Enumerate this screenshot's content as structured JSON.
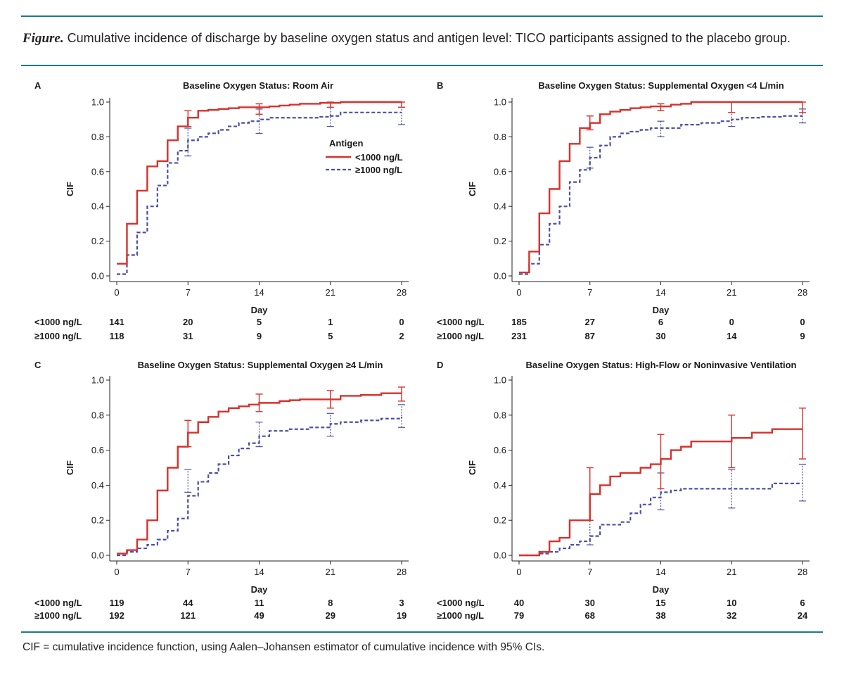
{
  "caption": {
    "label": "Figure.",
    "text": "Cumulative incidence of discharge by baseline oxygen status and antigen level: TICO participants assigned to the placebo group."
  },
  "footnote": "CIF = cumulative incidence function, using Aalen–Johansen estimator of cumulative incidence with 95% CIs.",
  "colors": {
    "low": "#d9302b",
    "high": "#4b4fa6",
    "rule": "#1e7a87"
  },
  "chart_data": [
    {
      "type": "line",
      "panel": "A",
      "title": "Baseline Oxygen Status: Room Air",
      "xlabel": "Day",
      "ylabel": "CIF",
      "xlim": [
        0,
        28
      ],
      "ylim": [
        0,
        1
      ],
      "xticks": [
        "0",
        "7",
        "14",
        "21",
        "28"
      ],
      "yticks": [
        "0.0",
        "0.2",
        "0.4",
        "0.6",
        "0.8",
        "1.0"
      ],
      "legend": {
        "title": "Antigen",
        "position": "center-right"
      },
      "series": [
        {
          "name": "<1000 ng/L",
          "style": "solid",
          "x": [
            0,
            1,
            2,
            3,
            4,
            5,
            6,
            7,
            8,
            9,
            10,
            11,
            12,
            14,
            15,
            16,
            17,
            18,
            19,
            20,
            21,
            22,
            26,
            28
          ],
          "y": [
            0.07,
            0.3,
            0.49,
            0.63,
            0.66,
            0.78,
            0.86,
            0.91,
            0.95,
            0.955,
            0.96,
            0.965,
            0.97,
            0.97,
            0.975,
            0.98,
            0.985,
            0.99,
            0.99,
            0.995,
            0.995,
            1.0,
            1.0,
            1.0
          ],
          "ci": [
            {
              "x": 7,
              "lo": 0.86,
              "hi": 0.95
            },
            {
              "x": 14,
              "lo": 0.93,
              "hi": 0.99
            },
            {
              "x": 21,
              "lo": 0.97,
              "hi": 1.0
            },
            {
              "x": 28,
              "lo": 0.97,
              "hi": 1.0
            }
          ]
        },
        {
          "name": "≥1000 ng/L",
          "style": "dashed",
          "x": [
            0,
            1,
            2,
            3,
            4,
            5,
            6,
            7,
            8,
            9,
            10,
            11,
            12,
            13,
            14,
            15,
            17,
            19,
            20,
            21,
            22,
            24,
            26,
            28
          ],
          "y": [
            0.01,
            0.12,
            0.25,
            0.4,
            0.52,
            0.65,
            0.72,
            0.78,
            0.8,
            0.82,
            0.84,
            0.86,
            0.88,
            0.89,
            0.9,
            0.91,
            0.91,
            0.91,
            0.915,
            0.92,
            0.94,
            0.94,
            0.94,
            0.94
          ],
          "ci": [
            {
              "x": 7,
              "lo": 0.69,
              "hi": 0.85
            },
            {
              "x": 14,
              "lo": 0.82,
              "hi": 0.96
            },
            {
              "x": 21,
              "lo": 0.86,
              "hi": 0.97
            },
            {
              "x": 28,
              "lo": 0.87,
              "hi": 0.97
            }
          ]
        }
      ],
      "at_risk": {
        "days": [
          0,
          7,
          14,
          21,
          28
        ],
        "rows": [
          {
            "label": "<1000 ng/L",
            "values": [
              "141",
              "20",
              "5",
              "1",
              "0"
            ]
          },
          {
            "label": "≥1000 ng/L",
            "values": [
              "118",
              "31",
              "9",
              "5",
              "2"
            ]
          }
        ]
      }
    },
    {
      "type": "line",
      "panel": "B",
      "title": "Baseline Oxygen Status: Supplemental Oxygen <4 L/min",
      "xlabel": "Day",
      "ylabel": "CIF",
      "xlim": [
        0,
        28
      ],
      "ylim": [
        0,
        1
      ],
      "xticks": [
        "0",
        "7",
        "14",
        "21",
        "28"
      ],
      "yticks": [
        "0.0",
        "0.2",
        "0.4",
        "0.6",
        "0.8",
        "1.0"
      ],
      "series": [
        {
          "name": "<1000 ng/L",
          "style": "solid",
          "x": [
            0,
            1,
            2,
            3,
            4,
            5,
            6,
            7,
            8,
            9,
            10,
            11,
            12,
            13,
            14,
            15,
            16,
            17,
            20,
            24,
            28
          ],
          "y": [
            0.02,
            0.14,
            0.36,
            0.5,
            0.66,
            0.76,
            0.85,
            0.88,
            0.93,
            0.945,
            0.955,
            0.965,
            0.97,
            0.975,
            0.975,
            0.985,
            0.99,
            1.0,
            1.0,
            1.0,
            1.0
          ],
          "ci": [
            {
              "x": 7,
              "lo": 0.84,
              "hi": 0.92
            },
            {
              "x": 14,
              "lo": 0.95,
              "hi": 0.99
            },
            {
              "x": 21,
              "lo": 0.94,
              "hi": 1.0
            },
            {
              "x": 28,
              "lo": 0.94,
              "hi": 1.0
            }
          ]
        },
        {
          "name": "≥1000 ng/L",
          "style": "dashed",
          "x": [
            0,
            1,
            2,
            3,
            4,
            5,
            6,
            7,
            8,
            9,
            10,
            11,
            12,
            13,
            14,
            16,
            18,
            20,
            21,
            22,
            24,
            26,
            28
          ],
          "y": [
            0.01,
            0.07,
            0.18,
            0.3,
            0.4,
            0.54,
            0.61,
            0.68,
            0.75,
            0.8,
            0.82,
            0.83,
            0.84,
            0.85,
            0.85,
            0.87,
            0.88,
            0.89,
            0.9,
            0.91,
            0.915,
            0.92,
            0.92
          ],
          "ci": [
            {
              "x": 7,
              "lo": 0.62,
              "hi": 0.74
            },
            {
              "x": 14,
              "lo": 0.8,
              "hi": 0.89
            },
            {
              "x": 21,
              "lo": 0.86,
              "hi": 0.94
            },
            {
              "x": 28,
              "lo": 0.88,
              "hi": 0.96
            }
          ]
        }
      ],
      "at_risk": {
        "days": [
          0,
          7,
          14,
          21,
          28
        ],
        "rows": [
          {
            "label": "<1000 ng/L",
            "values": [
              "185",
              "27",
              "6",
              "0",
              "0"
            ]
          },
          {
            "label": "≥1000 ng/L",
            "values": [
              "231",
              "87",
              "30",
              "14",
              "9"
            ]
          }
        ]
      }
    },
    {
      "type": "line",
      "panel": "C",
      "title": "Baseline Oxygen Status: Supplemental Oxygen ≥4 L/min",
      "xlabel": "Day",
      "ylabel": "CIF",
      "xlim": [
        0,
        28
      ],
      "ylim": [
        0,
        1
      ],
      "xticks": [
        "0",
        "7",
        "14",
        "21",
        "28"
      ],
      "yticks": [
        "0.0",
        "0.2",
        "0.4",
        "0.6",
        "0.8",
        "1.0"
      ],
      "series": [
        {
          "name": "<1000 ng/L",
          "style": "solid",
          "x": [
            0,
            1,
            2,
            3,
            4,
            5,
            6,
            7,
            8,
            9,
            10,
            11,
            12,
            13,
            14,
            16,
            17,
            18,
            21,
            22,
            24,
            26,
            28
          ],
          "y": [
            0.01,
            0.03,
            0.09,
            0.2,
            0.37,
            0.5,
            0.62,
            0.7,
            0.76,
            0.79,
            0.82,
            0.84,
            0.85,
            0.86,
            0.87,
            0.88,
            0.885,
            0.89,
            0.89,
            0.91,
            0.915,
            0.925,
            0.925
          ],
          "ci": [
            {
              "x": 7,
              "lo": 0.62,
              "hi": 0.77
            },
            {
              "x": 14,
              "lo": 0.82,
              "hi": 0.92
            },
            {
              "x": 21,
              "lo": 0.84,
              "hi": 0.94
            },
            {
              "x": 28,
              "lo": 0.88,
              "hi": 0.96
            }
          ]
        },
        {
          "name": "≥1000 ng/L",
          "style": "dashed",
          "x": [
            0,
            1,
            2,
            3,
            4,
            5,
            6,
            7,
            8,
            9,
            10,
            11,
            12,
            13,
            14,
            15,
            17,
            19,
            21,
            22,
            24,
            26,
            28
          ],
          "y": [
            0.0,
            0.02,
            0.04,
            0.06,
            0.09,
            0.14,
            0.21,
            0.34,
            0.42,
            0.47,
            0.52,
            0.57,
            0.61,
            0.64,
            0.68,
            0.71,
            0.72,
            0.73,
            0.75,
            0.76,
            0.77,
            0.78,
            0.79
          ],
          "ci": [
            {
              "x": 7,
              "lo": 0.36,
              "hi": 0.49
            },
            {
              "x": 14,
              "lo": 0.62,
              "hi": 0.76
            },
            {
              "x": 21,
              "lo": 0.68,
              "hi": 0.81
            },
            {
              "x": 28,
              "lo": 0.73,
              "hi": 0.86
            }
          ]
        }
      ],
      "at_risk": {
        "days": [
          0,
          7,
          14,
          21,
          28
        ],
        "rows": [
          {
            "label": "<1000 ng/L",
            "values": [
              "119",
              "44",
              "11",
              "8",
              "3"
            ]
          },
          {
            "label": "≥1000 ng/L",
            "values": [
              "192",
              "121",
              "49",
              "29",
              "19"
            ]
          }
        ]
      }
    },
    {
      "type": "line",
      "panel": "D",
      "title": "Baseline Oxygen Status: High-Flow or Noninvasive Ventilation",
      "xlabel": "Day",
      "ylabel": "CIF",
      "xlim": [
        0,
        28
      ],
      "ylim": [
        0,
        1
      ],
      "xticks": [
        "0",
        "7",
        "14",
        "21",
        "28"
      ],
      "yticks": [
        "0.0",
        "0.2",
        "0.4",
        "0.6",
        "0.8",
        "1.0"
      ],
      "series": [
        {
          "name": "<1000 ng/L",
          "style": "solid",
          "x": [
            0,
            2,
            3,
            4,
            5,
            7,
            8,
            9,
            10,
            11,
            12,
            13,
            14,
            15,
            16,
            17,
            21,
            22,
            23,
            25,
            28
          ],
          "y": [
            0.0,
            0.02,
            0.08,
            0.1,
            0.2,
            0.35,
            0.4,
            0.45,
            0.47,
            0.47,
            0.5,
            0.52,
            0.55,
            0.6,
            0.62,
            0.65,
            0.67,
            0.67,
            0.7,
            0.72,
            0.72
          ],
          "ci": [
            {
              "x": 7,
              "lo": 0.2,
              "hi": 0.5
            },
            {
              "x": 14,
              "lo": 0.38,
              "hi": 0.69
            },
            {
              "x": 21,
              "lo": 0.5,
              "hi": 0.8
            },
            {
              "x": 28,
              "lo": 0.55,
              "hi": 0.84
            }
          ]
        },
        {
          "name": "≥1000 ng/L",
          "style": "dashed",
          "x": [
            0,
            2,
            3,
            4,
            5,
            6,
            7,
            8,
            10,
            11,
            12,
            13,
            14,
            15,
            16,
            21,
            25,
            28
          ],
          "y": [
            0.0,
            0.01,
            0.02,
            0.04,
            0.06,
            0.08,
            0.11,
            0.175,
            0.19,
            0.24,
            0.29,
            0.33,
            0.36,
            0.37,
            0.38,
            0.38,
            0.41,
            0.41
          ],
          "ci": [
            {
              "x": 7,
              "lo": 0.06,
              "hi": 0.2
            },
            {
              "x": 14,
              "lo": 0.26,
              "hi": 0.47
            },
            {
              "x": 21,
              "lo": 0.27,
              "hi": 0.49
            },
            {
              "x": 28,
              "lo": 0.31,
              "hi": 0.52
            }
          ]
        }
      ],
      "at_risk": {
        "days": [
          0,
          7,
          14,
          21,
          28
        ],
        "rows": [
          {
            "label": "<1000 ng/L",
            "values": [
              "40",
              "30",
              "15",
              "10",
              "6"
            ]
          },
          {
            "label": "≥1000 ng/L",
            "values": [
              "79",
              "68",
              "38",
              "32",
              "24"
            ]
          }
        ]
      }
    }
  ]
}
